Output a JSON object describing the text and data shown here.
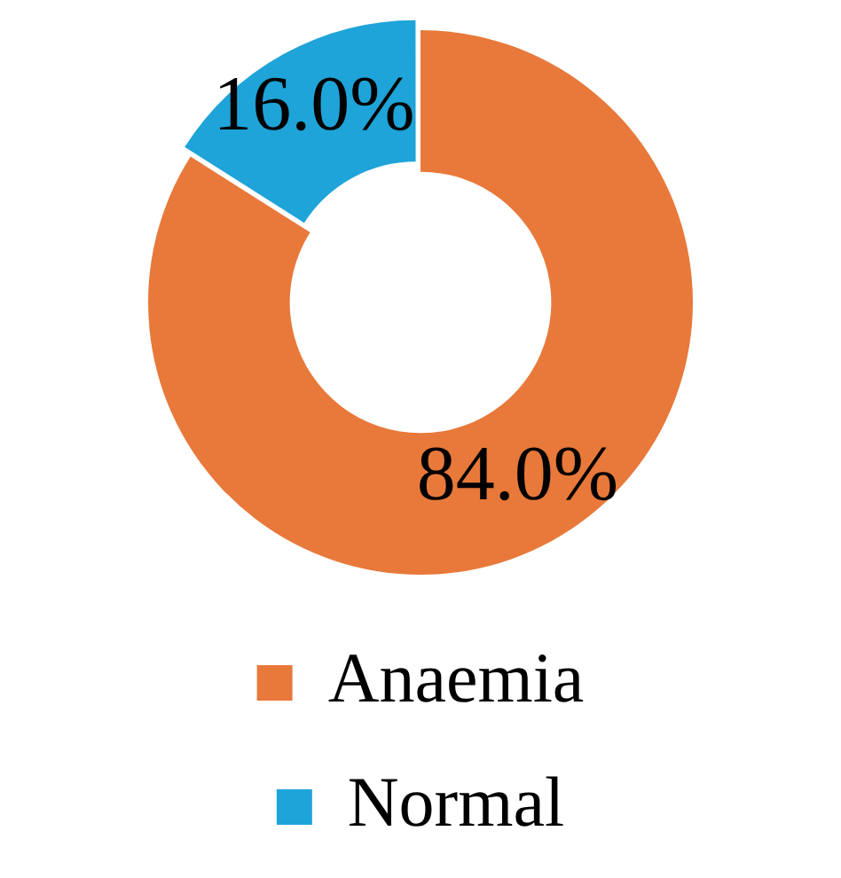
{
  "chart_data": {
    "type": "donut",
    "categories": [
      "Anaemia",
      "Normal"
    ],
    "values": [
      84.0,
      16.0
    ],
    "colors": [
      "#e8793a",
      "#1ea4d8"
    ],
    "value_labels": [
      "84.0%",
      "16.0%"
    ],
    "legend": "bottom"
  }
}
